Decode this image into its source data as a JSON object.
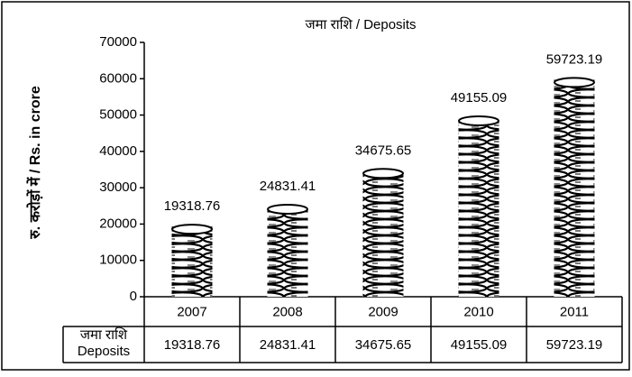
{
  "chart_data": {
    "type": "bar",
    "title": "जमा राशि / Deposits",
    "y_label": "रु. करोड़ों में / Rs. in crore",
    "categories": [
      "2007",
      "2008",
      "2009",
      "2010",
      "2011"
    ],
    "values": [
      19318.76,
      24831.41,
      34675.65,
      49155.09,
      59723.19
    ],
    "row_label": [
      "जमा राशि",
      "Deposits"
    ],
    "color": "#000000",
    "ylim": [
      0,
      70000
    ],
    "yticks": [
      0,
      10000,
      20000,
      30000,
      40000,
      50000,
      60000,
      70000
    ],
    "grid": false
  }
}
